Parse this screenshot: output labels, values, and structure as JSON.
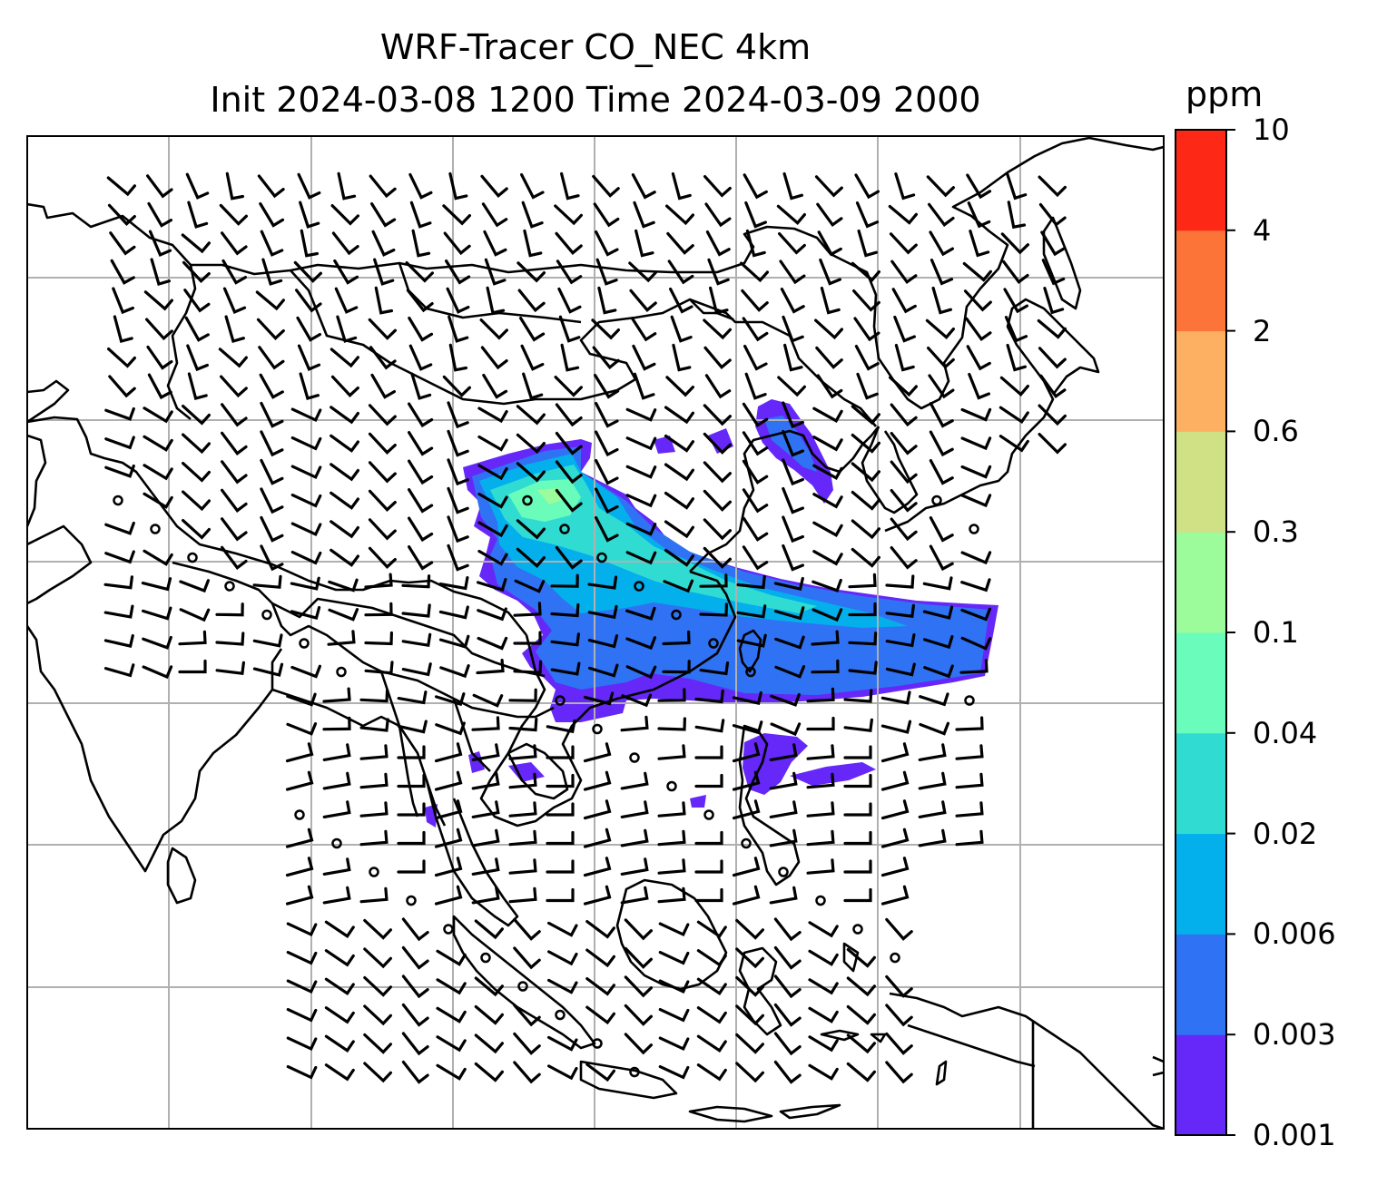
{
  "title_line1": "WRF-Tracer CO_NEC 4km",
  "title_line2": "Init 2024-03-08 1200 Time 2024-03-09 2000",
  "colorbar": {
    "unit": "ppm",
    "levels": [
      "0.001",
      "0.003",
      "0.006",
      "0.02",
      "0.04",
      "0.1",
      "0.3",
      "0.6",
      "2",
      "4",
      "10"
    ],
    "colors": [
      "#6528f8",
      "#3072f4",
      "#03b0ec",
      "#30dcd2",
      "#6afcba",
      "#9cfc9c",
      "#d0e085",
      "#fdb061",
      "#fd7438",
      "#fd2916"
    ]
  },
  "map": {
    "gridlines": true,
    "coastlines": true,
    "wind_barbs": true
  },
  "colors": {
    "gridline": "#b0b0b0",
    "coastline": "#000000"
  }
}
